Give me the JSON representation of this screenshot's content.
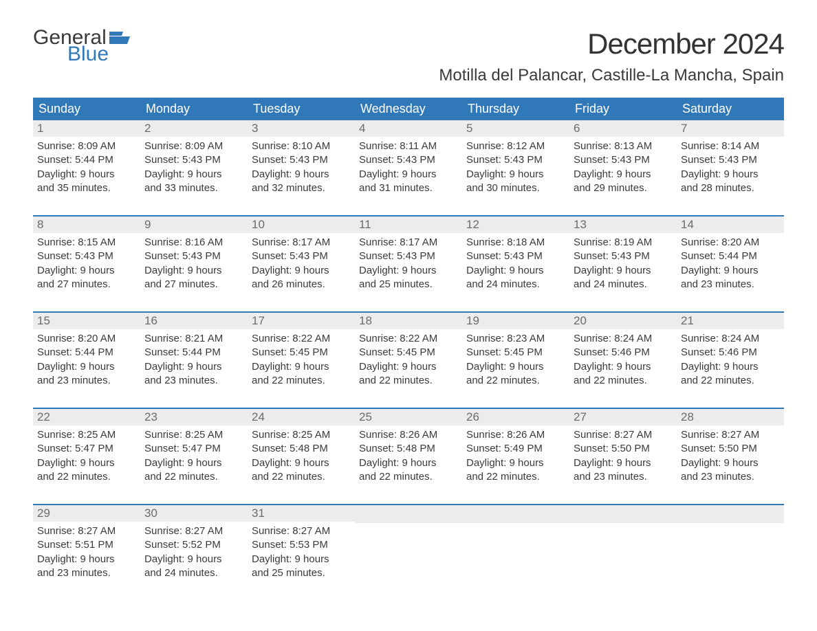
{
  "logo": {
    "word1": "General",
    "word2": "Blue",
    "word1_color": "#3a3a3a",
    "word2_color": "#3178b9",
    "flag_color": "#3178b9"
  },
  "title": {
    "month_year": "December 2024",
    "location": "Motilla del Palancar, Castille-La Mancha, Spain",
    "title_fontsize": 42,
    "location_fontsize": 24
  },
  "styling": {
    "header_bg": "#3178b9",
    "header_text_color": "#ffffff",
    "week_border_color": "#3178b9",
    "date_bg": "#ececec",
    "date_text_color": "#6b6b6b",
    "body_text_color": "#3a3a3a",
    "page_bg": "#ffffff",
    "body_fontsize": 15
  },
  "day_names": [
    "Sunday",
    "Monday",
    "Tuesday",
    "Wednesday",
    "Thursday",
    "Friday",
    "Saturday"
  ],
  "weeks": [
    [
      {
        "date": "1",
        "sunrise": "Sunrise: 8:09 AM",
        "sunset": "Sunset: 5:44 PM",
        "daylight1": "Daylight: 9 hours",
        "daylight2": "and 35 minutes."
      },
      {
        "date": "2",
        "sunrise": "Sunrise: 8:09 AM",
        "sunset": "Sunset: 5:43 PM",
        "daylight1": "Daylight: 9 hours",
        "daylight2": "and 33 minutes."
      },
      {
        "date": "3",
        "sunrise": "Sunrise: 8:10 AM",
        "sunset": "Sunset: 5:43 PM",
        "daylight1": "Daylight: 9 hours",
        "daylight2": "and 32 minutes."
      },
      {
        "date": "4",
        "sunrise": "Sunrise: 8:11 AM",
        "sunset": "Sunset: 5:43 PM",
        "daylight1": "Daylight: 9 hours",
        "daylight2": "and 31 minutes."
      },
      {
        "date": "5",
        "sunrise": "Sunrise: 8:12 AM",
        "sunset": "Sunset: 5:43 PM",
        "daylight1": "Daylight: 9 hours",
        "daylight2": "and 30 minutes."
      },
      {
        "date": "6",
        "sunrise": "Sunrise: 8:13 AM",
        "sunset": "Sunset: 5:43 PM",
        "daylight1": "Daylight: 9 hours",
        "daylight2": "and 29 minutes."
      },
      {
        "date": "7",
        "sunrise": "Sunrise: 8:14 AM",
        "sunset": "Sunset: 5:43 PM",
        "daylight1": "Daylight: 9 hours",
        "daylight2": "and 28 minutes."
      }
    ],
    [
      {
        "date": "8",
        "sunrise": "Sunrise: 8:15 AM",
        "sunset": "Sunset: 5:43 PM",
        "daylight1": "Daylight: 9 hours",
        "daylight2": "and 27 minutes."
      },
      {
        "date": "9",
        "sunrise": "Sunrise: 8:16 AM",
        "sunset": "Sunset: 5:43 PM",
        "daylight1": "Daylight: 9 hours",
        "daylight2": "and 27 minutes."
      },
      {
        "date": "10",
        "sunrise": "Sunrise: 8:17 AM",
        "sunset": "Sunset: 5:43 PM",
        "daylight1": "Daylight: 9 hours",
        "daylight2": "and 26 minutes."
      },
      {
        "date": "11",
        "sunrise": "Sunrise: 8:17 AM",
        "sunset": "Sunset: 5:43 PM",
        "daylight1": "Daylight: 9 hours",
        "daylight2": "and 25 minutes."
      },
      {
        "date": "12",
        "sunrise": "Sunrise: 8:18 AM",
        "sunset": "Sunset: 5:43 PM",
        "daylight1": "Daylight: 9 hours",
        "daylight2": "and 24 minutes."
      },
      {
        "date": "13",
        "sunrise": "Sunrise: 8:19 AM",
        "sunset": "Sunset: 5:43 PM",
        "daylight1": "Daylight: 9 hours",
        "daylight2": "and 24 minutes."
      },
      {
        "date": "14",
        "sunrise": "Sunrise: 8:20 AM",
        "sunset": "Sunset: 5:44 PM",
        "daylight1": "Daylight: 9 hours",
        "daylight2": "and 23 minutes."
      }
    ],
    [
      {
        "date": "15",
        "sunrise": "Sunrise: 8:20 AM",
        "sunset": "Sunset: 5:44 PM",
        "daylight1": "Daylight: 9 hours",
        "daylight2": "and 23 minutes."
      },
      {
        "date": "16",
        "sunrise": "Sunrise: 8:21 AM",
        "sunset": "Sunset: 5:44 PM",
        "daylight1": "Daylight: 9 hours",
        "daylight2": "and 23 minutes."
      },
      {
        "date": "17",
        "sunrise": "Sunrise: 8:22 AM",
        "sunset": "Sunset: 5:45 PM",
        "daylight1": "Daylight: 9 hours",
        "daylight2": "and 22 minutes."
      },
      {
        "date": "18",
        "sunrise": "Sunrise: 8:22 AM",
        "sunset": "Sunset: 5:45 PM",
        "daylight1": "Daylight: 9 hours",
        "daylight2": "and 22 minutes."
      },
      {
        "date": "19",
        "sunrise": "Sunrise: 8:23 AM",
        "sunset": "Sunset: 5:45 PM",
        "daylight1": "Daylight: 9 hours",
        "daylight2": "and 22 minutes."
      },
      {
        "date": "20",
        "sunrise": "Sunrise: 8:24 AM",
        "sunset": "Sunset: 5:46 PM",
        "daylight1": "Daylight: 9 hours",
        "daylight2": "and 22 minutes."
      },
      {
        "date": "21",
        "sunrise": "Sunrise: 8:24 AM",
        "sunset": "Sunset: 5:46 PM",
        "daylight1": "Daylight: 9 hours",
        "daylight2": "and 22 minutes."
      }
    ],
    [
      {
        "date": "22",
        "sunrise": "Sunrise: 8:25 AM",
        "sunset": "Sunset: 5:47 PM",
        "daylight1": "Daylight: 9 hours",
        "daylight2": "and 22 minutes."
      },
      {
        "date": "23",
        "sunrise": "Sunrise: 8:25 AM",
        "sunset": "Sunset: 5:47 PM",
        "daylight1": "Daylight: 9 hours",
        "daylight2": "and 22 minutes."
      },
      {
        "date": "24",
        "sunrise": "Sunrise: 8:25 AM",
        "sunset": "Sunset: 5:48 PM",
        "daylight1": "Daylight: 9 hours",
        "daylight2": "and 22 minutes."
      },
      {
        "date": "25",
        "sunrise": "Sunrise: 8:26 AM",
        "sunset": "Sunset: 5:48 PM",
        "daylight1": "Daylight: 9 hours",
        "daylight2": "and 22 minutes."
      },
      {
        "date": "26",
        "sunrise": "Sunrise: 8:26 AM",
        "sunset": "Sunset: 5:49 PM",
        "daylight1": "Daylight: 9 hours",
        "daylight2": "and 22 minutes."
      },
      {
        "date": "27",
        "sunrise": "Sunrise: 8:27 AM",
        "sunset": "Sunset: 5:50 PM",
        "daylight1": "Daylight: 9 hours",
        "daylight2": "and 23 minutes."
      },
      {
        "date": "28",
        "sunrise": "Sunrise: 8:27 AM",
        "sunset": "Sunset: 5:50 PM",
        "daylight1": "Daylight: 9 hours",
        "daylight2": "and 23 minutes."
      }
    ],
    [
      {
        "date": "29",
        "sunrise": "Sunrise: 8:27 AM",
        "sunset": "Sunset: 5:51 PM",
        "daylight1": "Daylight: 9 hours",
        "daylight2": "and 23 minutes."
      },
      {
        "date": "30",
        "sunrise": "Sunrise: 8:27 AM",
        "sunset": "Sunset: 5:52 PM",
        "daylight1": "Daylight: 9 hours",
        "daylight2": "and 24 minutes."
      },
      {
        "date": "31",
        "sunrise": "Sunrise: 8:27 AM",
        "sunset": "Sunset: 5:53 PM",
        "daylight1": "Daylight: 9 hours",
        "daylight2": "and 25 minutes."
      },
      {
        "empty": true
      },
      {
        "empty": true
      },
      {
        "empty": true
      },
      {
        "empty": true
      }
    ]
  ]
}
